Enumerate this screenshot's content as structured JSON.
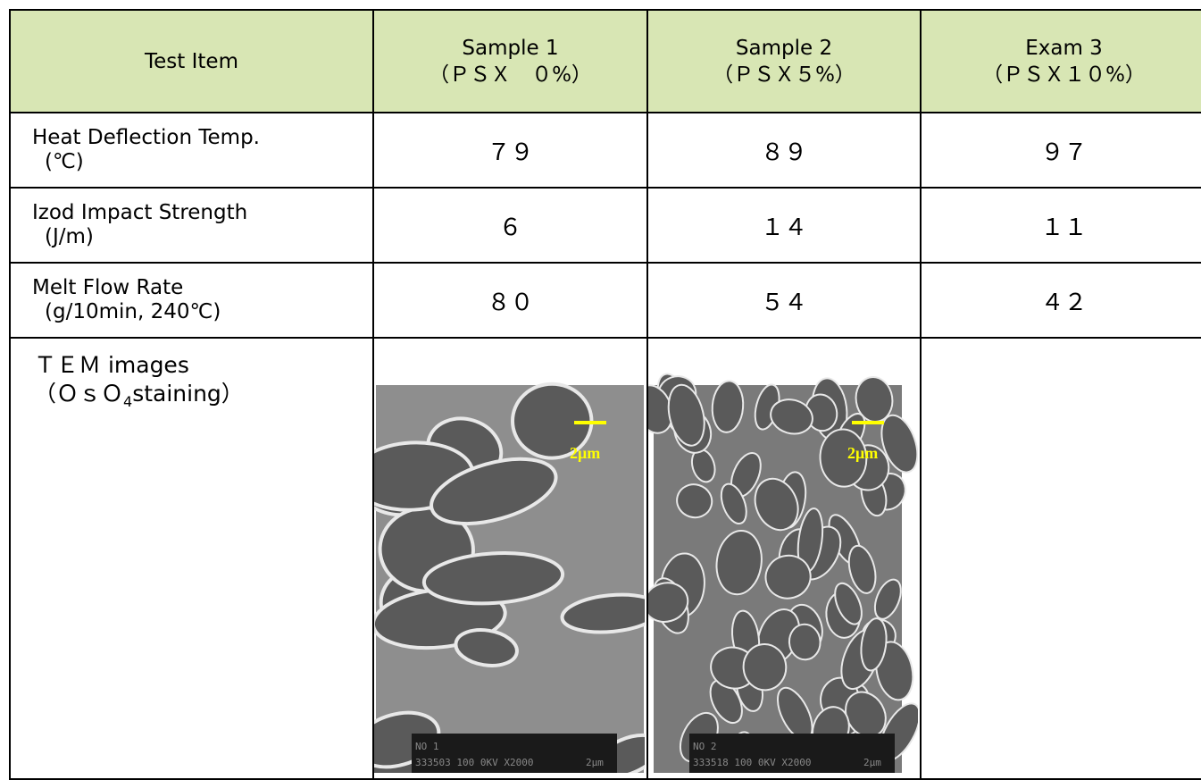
{
  "table": {
    "header": [
      "Test Item",
      [
        "Sample 1",
        "（ＰＳＸ　０%）"
      ],
      [
        "Sample 2",
        "（ＰＳＸ５%）"
      ],
      [
        "Exam 3",
        "（ＰＳＸ１０%）"
      ]
    ],
    "rows": [
      {
        "label": [
          "Heat Deflection Temp.",
          "(℃)"
        ],
        "values": [
          "７９",
          "８９",
          "９７"
        ]
      },
      {
        "label": [
          "Izod Impact Strength",
          "(J/m)"
        ],
        "values": [
          "６",
          "１４",
          "１１"
        ]
      },
      {
        "label": [
          "Melt Flow Rate",
          "(g/10min, 240℃)"
        ],
        "values": [
          "８０",
          "５４",
          "４２"
        ]
      }
    ],
    "tem": {
      "line1": "ＴＥＭ images",
      "line2_before": "（ＯｓＯ",
      "subscript": "4",
      "line2_after": "staining）",
      "images": [
        {
          "scale": "2μm",
          "caption1": "NO 1",
          "caption2": "333503 100 0KV X2000",
          "caption3": "2μm"
        },
        {
          "scale": "2μm",
          "caption1": "NO 2",
          "caption2": "333518 100 0KV X2000",
          "caption3": "2μm"
        }
      ]
    }
  }
}
